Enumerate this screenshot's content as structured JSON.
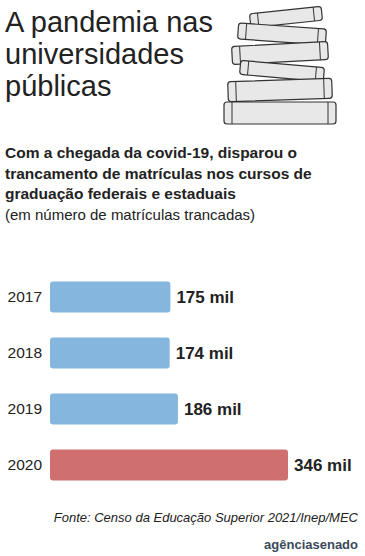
{
  "chart_data": {
    "type": "bar",
    "orientation": "horizontal",
    "title": "A pandemia nas universidades públicas",
    "subtitle": "Com a chegada da covid-19, disparou o trancamento de matrículas nos cursos de graduação federais e estaduais",
    "note": "(em número de matrículas trancadas)",
    "source": "Fonte: Censo da Educação Superior 2021/Inep/MEC",
    "logo": "agênciasenado",
    "categories": [
      "2017",
      "2018",
      "2019",
      "2020"
    ],
    "values": [
      175,
      174,
      186,
      346
    ],
    "value_labels": [
      "175 mil",
      "174 mil",
      "186 mil",
      "346 mil"
    ],
    "colors": [
      "#84b6de",
      "#84b6de",
      "#84b6de",
      "#cf6f70"
    ],
    "xlim": [
      0,
      346
    ],
    "data_labels": true,
    "tick_labels": "y",
    "grid": false
  }
}
